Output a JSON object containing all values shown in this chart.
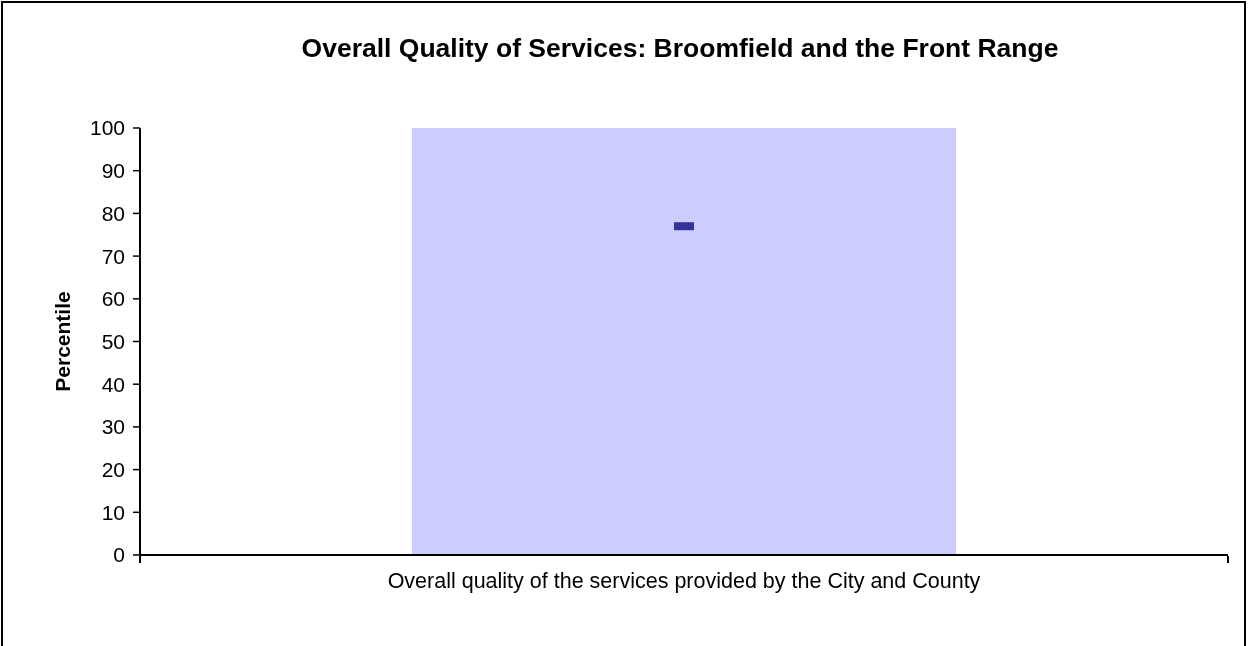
{
  "chart_data": {
    "type": "bar",
    "title": "Overall Quality of Services: Broomfield and the Front Range",
    "ylabel": "Percentile",
    "categories": [
      "Overall quality of the services provided by the City and County"
    ],
    "series": [
      {
        "color": "#ccccff",
        "values": [
          100
        ]
      },
      {
        "type": "scatter",
        "color": "#333399",
        "x": [
          "Overall quality of the services provided by the City and County"
        ],
        "values": [
          77
        ]
      }
    ],
    "ylim": [
      0,
      100
    ],
    "yticks": [
      0,
      10,
      20,
      30,
      40,
      50,
      60,
      70,
      80,
      90,
      100
    ]
  }
}
